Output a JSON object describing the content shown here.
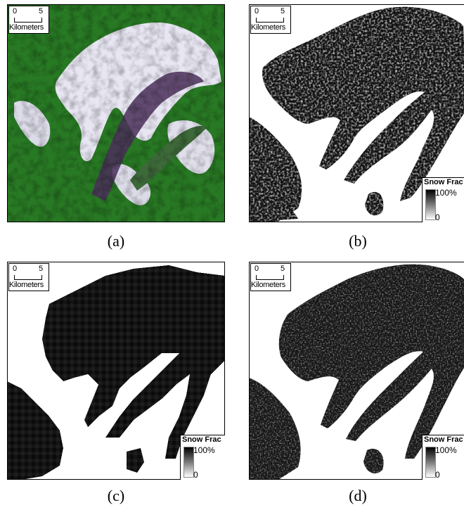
{
  "panels": [
    {
      "id": "a",
      "caption": "(a)",
      "kind": "true-color satellite image",
      "scale": {
        "left": "0",
        "right": "5",
        "unit": "Kilometers"
      }
    },
    {
      "id": "b",
      "caption": "(b)",
      "kind": "snow fraction map",
      "scale": {
        "left": "0",
        "right": "5",
        "unit": "Kilometers"
      },
      "legend": {
        "title": "Snow Frac",
        "max": "100%",
        "min": "0"
      }
    },
    {
      "id": "c",
      "caption": "(c)",
      "kind": "snow fraction map (coarse)",
      "scale": {
        "left": "0",
        "right": "5",
        "unit": "Kilometers"
      },
      "legend": {
        "title": "Snow Frac",
        "max": "100%",
        "min": "0"
      }
    },
    {
      "id": "d",
      "caption": "(d)",
      "kind": "snow fraction map",
      "scale": {
        "left": "0",
        "right": "5",
        "unit": "Kilometers"
      },
      "legend": {
        "title": "Snow Frac",
        "max": "100%",
        "min": "0"
      }
    }
  ],
  "colors": {
    "vegetation": "#2f8a2a",
    "snow": "#e8e6f2",
    "valley": "#4a2f5a",
    "snow_fraction": "#111111"
  }
}
